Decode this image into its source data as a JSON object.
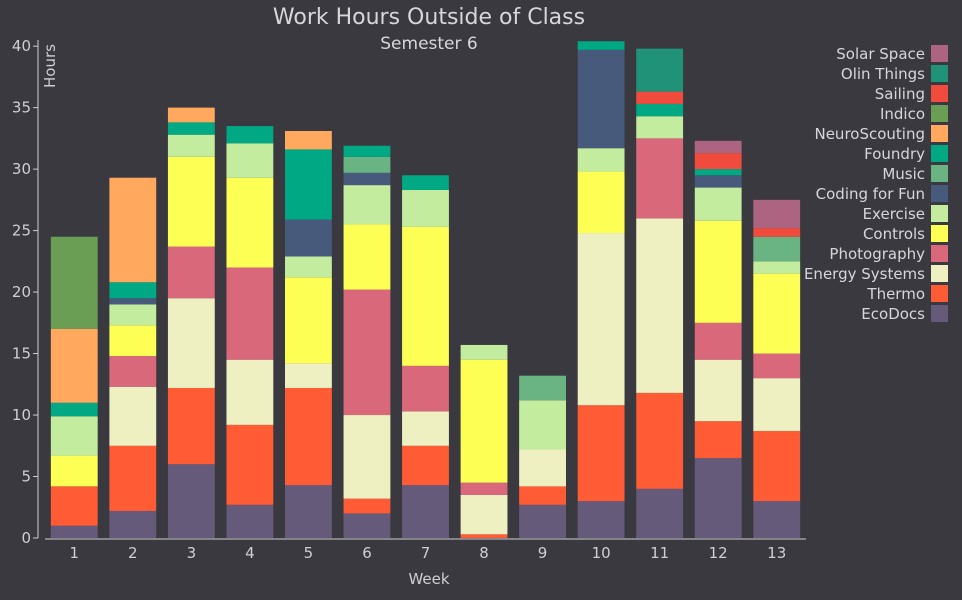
{
  "chart_data": {
    "type": "bar",
    "stacked": true,
    "title": "Work Hours Outside of Class",
    "subtitle": "Semester 6",
    "xlabel": "Week",
    "ylabel": "Hours",
    "ylim": [
      0,
      40.5
    ],
    "yticks": [
      0,
      5,
      10,
      15,
      20,
      25,
      30,
      35,
      40
    ],
    "grid": false,
    "legend_position": "top-right",
    "categories": [
      "1",
      "2",
      "3",
      "4",
      "5",
      "6",
      "7",
      "8",
      "9",
      "10",
      "11",
      "12",
      "13"
    ],
    "series": [
      {
        "name": "EcoDocs",
        "color": "#665a7a",
        "values": [
          1,
          2.2,
          6,
          2.7,
          4.3,
          2,
          4.3,
          0,
          2.7,
          3,
          4,
          6.5,
          3
        ]
      },
      {
        "name": "Thermo",
        "color": "#ff5c36",
        "values": [
          3.2,
          5.3,
          6.2,
          6.5,
          7.9,
          1.2,
          3.2,
          0.3,
          1.5,
          7.8,
          7.8,
          3,
          5.7
        ]
      },
      {
        "name": "Energy Systems",
        "color": "#eff0c2",
        "values": [
          0,
          4.8,
          7.3,
          5.3,
          2,
          6.8,
          2.8,
          3.2,
          3,
          14,
          14.2,
          5,
          4.3
        ]
      },
      {
        "name": "Photography",
        "color": "#d9697a",
        "values": [
          0,
          2.5,
          4.2,
          7.5,
          0,
          10.2,
          3.7,
          1,
          0,
          0,
          6.5,
          3,
          2
        ]
      },
      {
        "name": "Controls",
        "color": "#fdff55",
        "values": [
          2.5,
          2.5,
          7.3,
          7.3,
          7,
          5.3,
          11.3,
          10,
          0,
          5,
          0,
          8.3,
          6.5
        ]
      },
      {
        "name": "Exercise",
        "color": "#c4ec9e",
        "values": [
          3.2,
          1.7,
          1.8,
          2.8,
          1.7,
          3.2,
          3,
          1.2,
          4,
          1.9,
          1.8,
          2.7,
          1
        ]
      },
      {
        "name": "Coding for Fun",
        "color": "#475a7c",
        "values": [
          0,
          0.5,
          0,
          0,
          3,
          1,
          0,
          0,
          0,
          8,
          0,
          1,
          0
        ]
      },
      {
        "name": "Music",
        "color": "#6ab483",
        "values": [
          0,
          0,
          0,
          0,
          0,
          1.3,
          0,
          0,
          2,
          0,
          0,
          0,
          2
        ]
      },
      {
        "name": "Foundry",
        "color": "#00a883",
        "values": [
          1.1,
          1.3,
          1,
          1.4,
          5.7,
          0.9,
          1.2,
          0,
          0,
          0.7,
          1,
          0.5,
          0
        ]
      },
      {
        "name": "NeuroScouting",
        "color": "#ffa85e",
        "values": [
          6,
          8.5,
          1.2,
          0,
          1.5,
          0,
          0,
          0,
          0,
          0,
          0,
          0,
          0
        ]
      },
      {
        "name": "Indico",
        "color": "#6a9e54",
        "values": [
          7.5,
          0,
          0,
          0,
          0,
          0,
          0,
          0,
          0,
          0,
          0,
          0,
          0
        ]
      },
      {
        "name": "Sailing",
        "color": "#f04b3c",
        "values": [
          0,
          0,
          0,
          0,
          0,
          0,
          0,
          0,
          0,
          0,
          1,
          1.3,
          0.7
        ]
      },
      {
        "name": "Olin Things",
        "color": "#1f9277",
        "values": [
          0,
          0,
          0,
          0,
          0,
          0,
          0,
          0,
          0,
          0,
          3.5,
          0,
          0
        ]
      },
      {
        "name": "Solar Space",
        "color": "#ac6480",
        "values": [
          0,
          0,
          0,
          0,
          0,
          0,
          0,
          0,
          0,
          0,
          0,
          1,
          2.3
        ]
      }
    ]
  }
}
